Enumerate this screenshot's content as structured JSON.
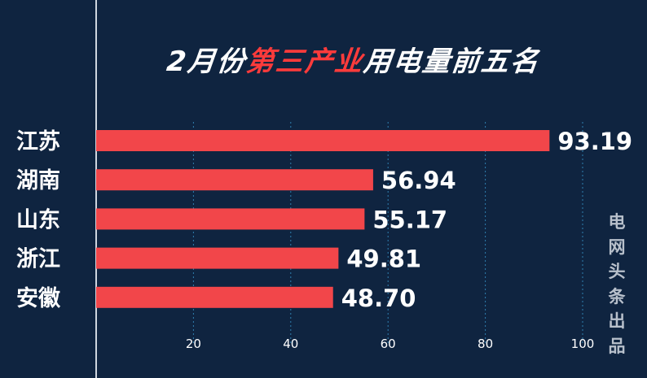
{
  "title": {
    "prefix": "2月份",
    "highlight": "第三产业",
    "suffix": "用电量前五名"
  },
  "watermark": [
    "电",
    "网",
    "头",
    "条",
    "出",
    "品"
  ],
  "colors": {
    "background": "#0f2440",
    "bar": "#f2464a",
    "highlight": "#ff3b3b",
    "axis": "#cfd6df",
    "grid": "#2f7fb0",
    "text": "#ffffff"
  },
  "chart_data": {
    "type": "bar",
    "orientation": "horizontal",
    "title": "2月份第三产业用电量前五名",
    "categories": [
      "江苏",
      "湖南",
      "山东",
      "浙江",
      "安徽"
    ],
    "values": [
      93.19,
      56.94,
      55.17,
      49.81,
      48.7
    ],
    "value_labels": [
      "93.19",
      "56.94",
      "55.17",
      "49.81",
      "48.70"
    ],
    "xticks": [
      20,
      40,
      60,
      80,
      100
    ],
    "xlim": [
      0,
      100
    ],
    "xlabel": "",
    "ylabel": "",
    "grid": true
  }
}
